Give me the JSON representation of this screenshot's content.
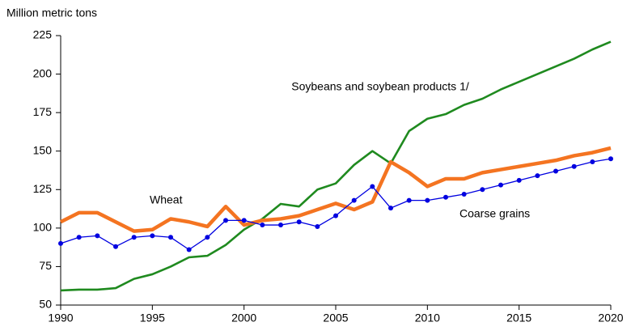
{
  "chart_data": {
    "type": "line",
    "y_axis_label": "Million metric tons",
    "x": [
      1990,
      1991,
      1992,
      1993,
      1994,
      1995,
      1996,
      1997,
      1998,
      1999,
      2000,
      2001,
      2002,
      2003,
      2004,
      2005,
      2006,
      2007,
      2008,
      2009,
      2010,
      2011,
      2012,
      2013,
      2014,
      2015,
      2016,
      2017,
      2018,
      2019,
      2020
    ],
    "xlim": [
      1990,
      2020
    ],
    "xticks": [
      1990,
      1995,
      2000,
      2005,
      2010,
      2015,
      2020
    ],
    "ylim": [
      50,
      225
    ],
    "yticks": [
      50,
      75,
      100,
      125,
      150,
      175,
      200,
      225
    ],
    "grid": false,
    "series": [
      {
        "name": "Soybeans and soybean products 1/",
        "color": "#1f8a1f",
        "values": [
          59.5,
          60,
          60,
          61,
          67,
          70,
          75,
          81,
          82,
          89,
          99,
          106,
          115.7,
          114,
          125,
          129,
          141,
          150,
          142,
          163,
          171,
          174,
          180,
          184,
          190,
          195,
          200,
          205,
          210,
          216,
          221
        ]
      },
      {
        "name": "Wheat",
        "color": "#f47421",
        "values": [
          104,
          110,
          110,
          104,
          98,
          99,
          106,
          104,
          101,
          114,
          102,
          105,
          106,
          108,
          112,
          116,
          112,
          117,
          143,
          136,
          127,
          132,
          132,
          136,
          138,
          140,
          142,
          144,
          147,
          149,
          152
        ]
      },
      {
        "name": "Coarse grains",
        "color": "#0000e0",
        "markers": true,
        "values": [
          90,
          94,
          95,
          88,
          94,
          95,
          94,
          86,
          94,
          105,
          105,
          102,
          102,
          104,
          101,
          108,
          118,
          127,
          113,
          118,
          118,
          120,
          122,
          125,
          128,
          131,
          134,
          137,
          140,
          143,
          145
        ]
      }
    ]
  }
}
